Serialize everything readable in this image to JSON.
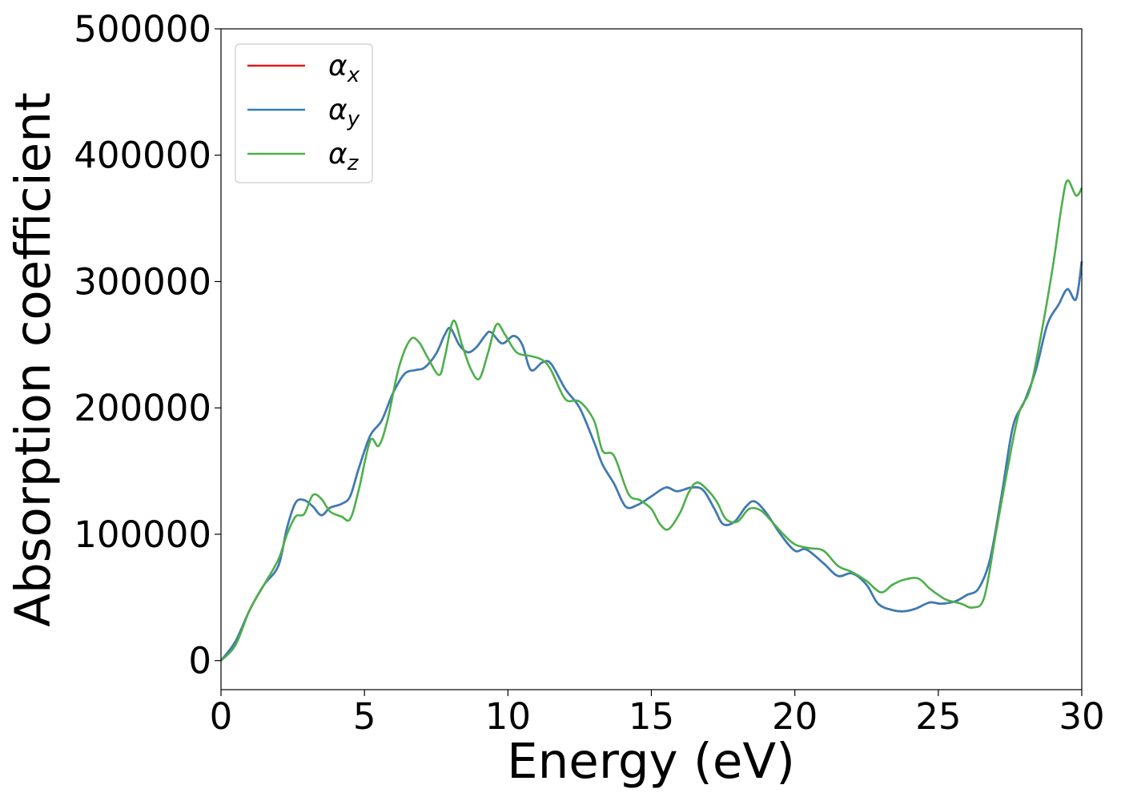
{
  "chart_data": {
    "type": "line",
    "title": "",
    "xlabel": "Energy (eV)",
    "ylabel": "Absorption coefficient",
    "xlim": [
      0,
      30
    ],
    "ylim": [
      -23000,
      500000
    ],
    "xticks": [
      0,
      5,
      10,
      15,
      20,
      25,
      30
    ],
    "xtick_labels": [
      "0",
      "5",
      "10",
      "15",
      "20",
      "25",
      "30"
    ],
    "yticks": [
      0,
      100000,
      200000,
      300000,
      400000,
      500000
    ],
    "ytick_labels": [
      "0",
      "100000",
      "200000",
      "300000",
      "400000",
      "500000"
    ],
    "grid": false,
    "legend_position": "top-left",
    "series": [
      {
        "name": "α",
        "subscript": "x",
        "color": "#e41a1c",
        "points": [
          [
            0,
            0
          ],
          [
            0.5,
            15000
          ],
          [
            1,
            40000
          ],
          [
            1.5,
            60000
          ],
          [
            2,
            75000
          ],
          [
            2.3,
            105000
          ],
          [
            2.6,
            125000
          ],
          [
            2.9,
            127000
          ],
          [
            3.2,
            122000
          ],
          [
            3.5,
            115000
          ],
          [
            3.8,
            121000
          ],
          [
            4.2,
            124000
          ],
          [
            4.5,
            130000
          ],
          [
            4.8,
            152000
          ],
          [
            5.2,
            178000
          ],
          [
            5.6,
            190000
          ],
          [
            6,
            212000
          ],
          [
            6.4,
            227000
          ],
          [
            6.8,
            230000
          ],
          [
            7.1,
            232000
          ],
          [
            7.5,
            243000
          ],
          [
            7.8,
            258000
          ],
          [
            8,
            263000
          ],
          [
            8.3,
            250000
          ],
          [
            8.6,
            244000
          ],
          [
            8.9,
            248000
          ],
          [
            9.2,
            257000
          ],
          [
            9.4,
            260000
          ],
          [
            9.8,
            251000
          ],
          [
            10.2,
            257000
          ],
          [
            10.5,
            250000
          ],
          [
            10.8,
            230000
          ],
          [
            11.2,
            236000
          ],
          [
            11.5,
            235000
          ],
          [
            12,
            215000
          ],
          [
            12.5,
            200000
          ],
          [
            13,
            173000
          ],
          [
            13.3,
            155000
          ],
          [
            13.7,
            140000
          ],
          [
            14.1,
            122000
          ],
          [
            14.5,
            123000
          ],
          [
            15,
            130000
          ],
          [
            15.5,
            137000
          ],
          [
            15.9,
            134000
          ],
          [
            16.4,
            137000
          ],
          [
            16.8,
            135000
          ],
          [
            17.2,
            120000
          ],
          [
            17.5,
            108000
          ],
          [
            17.9,
            110000
          ],
          [
            18.3,
            122000
          ],
          [
            18.6,
            126000
          ],
          [
            19,
            117000
          ],
          [
            19.5,
            100000
          ],
          [
            20,
            87000
          ],
          [
            20.4,
            88000
          ],
          [
            21,
            77000
          ],
          [
            21.5,
            67000
          ],
          [
            22,
            69000
          ],
          [
            22.5,
            60000
          ],
          [
            22.9,
            45000
          ],
          [
            23.4,
            40000
          ],
          [
            23.8,
            39000
          ],
          [
            24.2,
            41000
          ],
          [
            24.7,
            46000
          ],
          [
            25.1,
            45000
          ],
          [
            25.6,
            47000
          ],
          [
            26,
            52000
          ],
          [
            26.4,
            57000
          ],
          [
            26.8,
            80000
          ],
          [
            27.2,
            130000
          ],
          [
            27.6,
            185000
          ],
          [
            28,
            205000
          ],
          [
            28.4,
            230000
          ],
          [
            28.8,
            266000
          ],
          [
            29.2,
            282000
          ],
          [
            29.5,
            294000
          ],
          [
            29.8,
            286000
          ],
          [
            30,
            316000
          ]
        ]
      },
      {
        "name": "α",
        "subscript": "y",
        "color": "#377eb8",
        "points": [
          [
            0,
            0
          ],
          [
            0.5,
            15000
          ],
          [
            1,
            40000
          ],
          [
            1.5,
            60000
          ],
          [
            2,
            75000
          ],
          [
            2.3,
            105000
          ],
          [
            2.6,
            125000
          ],
          [
            2.9,
            127000
          ],
          [
            3.2,
            122000
          ],
          [
            3.5,
            115000
          ],
          [
            3.8,
            121000
          ],
          [
            4.2,
            124000
          ],
          [
            4.5,
            130000
          ],
          [
            4.8,
            152000
          ],
          [
            5.2,
            178000
          ],
          [
            5.6,
            190000
          ],
          [
            6,
            212000
          ],
          [
            6.4,
            227000
          ],
          [
            6.8,
            230000
          ],
          [
            7.1,
            232000
          ],
          [
            7.5,
            243000
          ],
          [
            7.8,
            258000
          ],
          [
            8,
            263000
          ],
          [
            8.3,
            250000
          ],
          [
            8.6,
            244000
          ],
          [
            8.9,
            248000
          ],
          [
            9.2,
            257000
          ],
          [
            9.4,
            260000
          ],
          [
            9.8,
            251000
          ],
          [
            10.2,
            257000
          ],
          [
            10.5,
            250000
          ],
          [
            10.8,
            230000
          ],
          [
            11.2,
            236000
          ],
          [
            11.5,
            235000
          ],
          [
            12,
            215000
          ],
          [
            12.5,
            200000
          ],
          [
            13,
            173000
          ],
          [
            13.3,
            155000
          ],
          [
            13.7,
            140000
          ],
          [
            14.1,
            122000
          ],
          [
            14.5,
            123000
          ],
          [
            15,
            130000
          ],
          [
            15.5,
            137000
          ],
          [
            15.9,
            134000
          ],
          [
            16.4,
            137000
          ],
          [
            16.8,
            135000
          ],
          [
            17.2,
            120000
          ],
          [
            17.5,
            108000
          ],
          [
            17.9,
            110000
          ],
          [
            18.3,
            122000
          ],
          [
            18.6,
            126000
          ],
          [
            19,
            117000
          ],
          [
            19.5,
            100000
          ],
          [
            20,
            87000
          ],
          [
            20.4,
            88000
          ],
          [
            21,
            77000
          ],
          [
            21.5,
            67000
          ],
          [
            22,
            69000
          ],
          [
            22.5,
            60000
          ],
          [
            22.9,
            45000
          ],
          [
            23.4,
            40000
          ],
          [
            23.8,
            39000
          ],
          [
            24.2,
            41000
          ],
          [
            24.7,
            46000
          ],
          [
            25.1,
            45000
          ],
          [
            25.6,
            47000
          ],
          [
            26,
            52000
          ],
          [
            26.4,
            57000
          ],
          [
            26.8,
            80000
          ],
          [
            27.2,
            130000
          ],
          [
            27.6,
            185000
          ],
          [
            28,
            205000
          ],
          [
            28.4,
            230000
          ],
          [
            28.8,
            266000
          ],
          [
            29.2,
            282000
          ],
          [
            29.5,
            294000
          ],
          [
            29.8,
            286000
          ],
          [
            30,
            316000
          ]
        ]
      },
      {
        "name": "α",
        "subscript": "z",
        "color": "#4daf4a",
        "points": [
          [
            0,
            0
          ],
          [
            0.5,
            12000
          ],
          [
            1,
            40000
          ],
          [
            1.5,
            60000
          ],
          [
            2,
            80000
          ],
          [
            2.3,
            100000
          ],
          [
            2.6,
            114000
          ],
          [
            2.9,
            116000
          ],
          [
            3.2,
            131000
          ],
          [
            3.5,
            128000
          ],
          [
            3.8,
            118000
          ],
          [
            4.2,
            114000
          ],
          [
            4.5,
            112000
          ],
          [
            4.8,
            135000
          ],
          [
            5.2,
            174000
          ],
          [
            5.5,
            170000
          ],
          [
            5.8,
            190000
          ],
          [
            6.2,
            232000
          ],
          [
            6.6,
            254000
          ],
          [
            6.9,
            252000
          ],
          [
            7.2,
            240000
          ],
          [
            7.6,
            226000
          ],
          [
            7.8,
            240000
          ],
          [
            8.1,
            269000
          ],
          [
            8.4,
            250000
          ],
          [
            8.7,
            231000
          ],
          [
            9,
            223000
          ],
          [
            9.3,
            243000
          ],
          [
            9.6,
            266000
          ],
          [
            9.9,
            258000
          ],
          [
            10.3,
            244000
          ],
          [
            10.8,
            241000
          ],
          [
            11.2,
            238000
          ],
          [
            11.5,
            230000
          ],
          [
            12,
            207000
          ],
          [
            12.5,
            205000
          ],
          [
            13,
            190000
          ],
          [
            13.3,
            166000
          ],
          [
            13.7,
            162000
          ],
          [
            14.2,
            132000
          ],
          [
            14.6,
            127000
          ],
          [
            15,
            120000
          ],
          [
            15.3,
            108000
          ],
          [
            15.6,
            104000
          ],
          [
            16,
            117000
          ],
          [
            16.3,
            133000
          ],
          [
            16.6,
            141000
          ],
          [
            17,
            134000
          ],
          [
            17.3,
            125000
          ],
          [
            17.6,
            112000
          ],
          [
            18,
            110000
          ],
          [
            18.4,
            120000
          ],
          [
            18.8,
            119000
          ],
          [
            19.2,
            110000
          ],
          [
            19.6,
            100000
          ],
          [
            20,
            92000
          ],
          [
            20.5,
            89000
          ],
          [
            21,
            87000
          ],
          [
            21.5,
            75000
          ],
          [
            22,
            70000
          ],
          [
            22.5,
            63000
          ],
          [
            23,
            54000
          ],
          [
            23.4,
            60000
          ],
          [
            23.8,
            64000
          ],
          [
            24.3,
            65000
          ],
          [
            24.7,
            57000
          ],
          [
            25,
            52000
          ],
          [
            25.3,
            48000
          ],
          [
            25.8,
            45000
          ],
          [
            26.2,
            42000
          ],
          [
            26.6,
            50000
          ],
          [
            27,
            100000
          ],
          [
            27.4,
            150000
          ],
          [
            27.8,
            195000
          ],
          [
            28.2,
            215000
          ],
          [
            28.6,
            260000
          ],
          [
            29,
            313000
          ],
          [
            29.3,
            360000
          ],
          [
            29.5,
            380000
          ],
          [
            29.8,
            368000
          ],
          [
            30,
            374000
          ]
        ]
      }
    ]
  }
}
